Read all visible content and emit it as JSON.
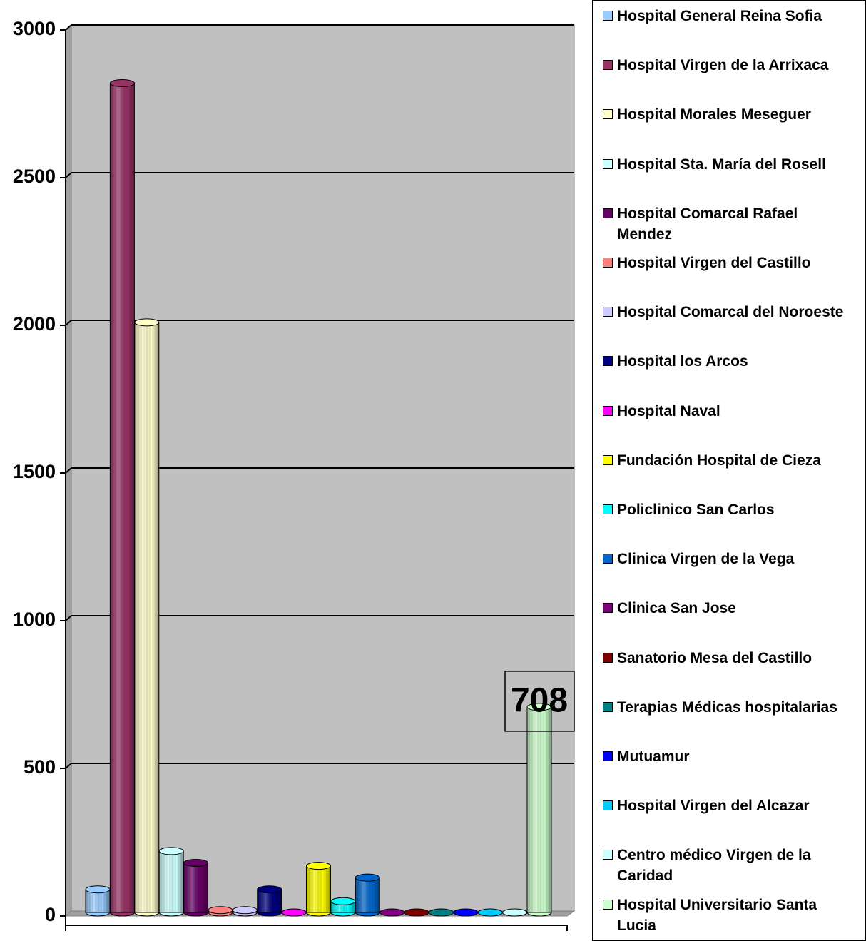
{
  "chart_data": {
    "type": "bar3d",
    "ylim": [
      0,
      3000
    ],
    "yticks": [
      0,
      500,
      1000,
      1500,
      2000,
      2500,
      3000
    ],
    "grid": true,
    "legend": "right",
    "data_label_series": [
      18
    ],
    "series": [
      {
        "name": "Hospital General Reina Sofia",
        "color": "#99ccff",
        "values": [
          90
        ]
      },
      {
        "name": "Hospital Virgen de la Arrixaca",
        "color": "#993366",
        "values": [
          2820
        ]
      },
      {
        "name": "Hospital Morales Meseguer",
        "color": "#ffffcc",
        "values": [
          2010
        ]
      },
      {
        "name": "Hospital Sta. María del Rosell",
        "color": "#ccffff",
        "values": [
          220
        ]
      },
      {
        "name": "Hospital Comarcal Rafael Mendez",
        "color": "#660066",
        "values": [
          180
        ]
      },
      {
        "name": "Hospital Virgen del Castillo",
        "color": "#ff8080",
        "values": [
          20
        ]
      },
      {
        "name": "Hospital Comarcal del Noroeste",
        "color": "#ccccff",
        "values": [
          20
        ]
      },
      {
        "name": "Hospital los Arcos",
        "color": "#000080",
        "values": [
          90
        ]
      },
      {
        "name": "Hospital Naval",
        "color": "#ff00ff",
        "values": [
          8
        ]
      },
      {
        "name": "Fundación Hospital de Cieza",
        "color": "#ffff00",
        "values": [
          170
        ]
      },
      {
        "name": "Policlinico San Carlos",
        "color": "#00ffff",
        "values": [
          50
        ]
      },
      {
        "name": "Clinica Virgen de la Vega",
        "color": "#0066cc",
        "values": [
          130
        ]
      },
      {
        "name": "Clinica San Jose",
        "color": "#800080",
        "values": [
          5
        ]
      },
      {
        "name": "Sanatorio Mesa del Castillo",
        "color": "#800000",
        "values": [
          5
        ]
      },
      {
        "name": "Terapias Médicas hospitalarias",
        "color": "#008080",
        "values": [
          3
        ]
      },
      {
        "name": "Mutuamur",
        "color": "#0000ff",
        "values": [
          3
        ]
      },
      {
        "name": "Hospital Virgen del Alcazar",
        "color": "#00ccff",
        "values": [
          3
        ]
      },
      {
        "name": "Centro médico Virgen de la Caridad",
        "color": "#ccffff",
        "values": [
          3
        ]
      },
      {
        "name": "Hospital Universitario Santa Lucia",
        "color": "#ccffcc",
        "values": [
          708
        ]
      }
    ]
  }
}
